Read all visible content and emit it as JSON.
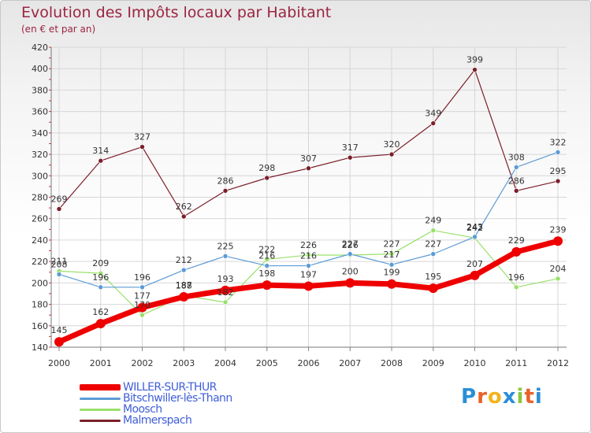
{
  "title": "Evolution des Impôts locaux par Habitant",
  "subtitle": "(en € et par an)",
  "logo": {
    "text": "Proxiti",
    "letters": [
      {
        "ch": "P",
        "color": "#2a8fd6"
      },
      {
        "ch": "r",
        "color": "#e8622a"
      },
      {
        "ch": "o",
        "color": "#f2b31b"
      },
      {
        "ch": "x",
        "color": "#2a8fd6"
      },
      {
        "ch": "i",
        "color": "#8cc63f"
      },
      {
        "ch": "t",
        "color": "#e8622a"
      },
      {
        "ch": "i",
        "color": "#2a8fd6"
      }
    ]
  },
  "chart_data": {
    "type": "line",
    "title": "Evolution des Impôts locaux par Habitant",
    "subtitle": "(en € et par an)",
    "xlabel": "",
    "ylabel": "",
    "ylim": [
      140,
      420
    ],
    "yticks": [
      140,
      160,
      180,
      200,
      220,
      240,
      260,
      280,
      300,
      320,
      340,
      360,
      380,
      400,
      420
    ],
    "grid": true,
    "legend_position": "bottom-left",
    "categories": [
      "2000",
      "2001",
      "2002",
      "2003",
      "2004",
      "2005",
      "2006",
      "2007",
      "2008",
      "2009",
      "2010",
      "2011",
      "2012"
    ],
    "series": [
      {
        "name": "WILLER-SUR-THUR",
        "color": "#ee0000",
        "values": [
          145,
          162,
          177,
          187,
          193,
          198,
          197,
          200,
          199,
          195,
          207,
          229,
          239
        ]
      },
      {
        "name": "Bitschwiller-lès-Thann",
        "color": "#5b9bd5",
        "values": [
          208,
          196,
          196,
          212,
          225,
          216,
          216,
          227,
          217,
          227,
          243,
          308,
          322
        ]
      },
      {
        "name": "Moosch",
        "color": "#99e06b",
        "values": [
          211,
          209,
          170,
          188,
          182,
          222,
          226,
          226,
          227,
          249,
          242,
          196,
          204
        ]
      },
      {
        "name": "Malmerspach",
        "color": "#7b1f2a",
        "values": [
          269,
          314,
          327,
          262,
          286,
          298,
          307,
          317,
          320,
          349,
          399,
          286,
          295
        ]
      }
    ]
  }
}
